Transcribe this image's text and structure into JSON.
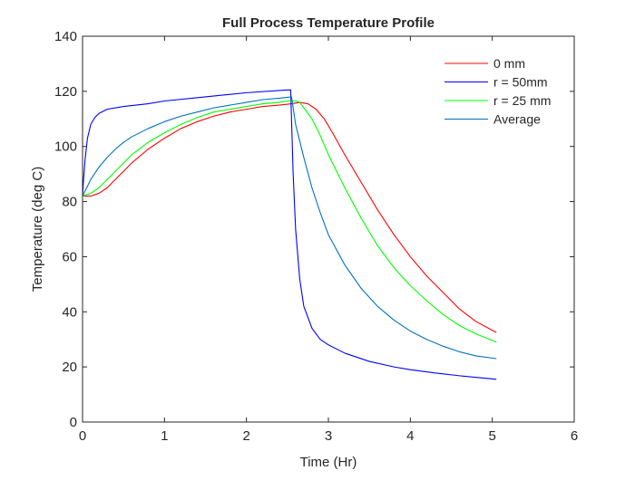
{
  "chart_data": {
    "type": "line",
    "title": "Full Process Temperature Profile",
    "xlabel": "Time (Hr)",
    "ylabel": "Temperature (deg C)",
    "xlim": [
      0,
      6
    ],
    "ylim": [
      0,
      140
    ],
    "xticks": [
      0,
      1,
      2,
      3,
      4,
      5,
      6
    ],
    "yticks": [
      0,
      20,
      40,
      60,
      80,
      100,
      120,
      140
    ],
    "grid": false,
    "legend_position": "top-right",
    "series": [
      {
        "name": "0 mm",
        "color": "#ff0000",
        "x": [
          0,
          0.1,
          0.2,
          0.3,
          0.4,
          0.5,
          0.6,
          0.8,
          1.0,
          1.2,
          1.4,
          1.6,
          1.8,
          2.0,
          2.2,
          2.4,
          2.55,
          2.65,
          2.75,
          2.85,
          2.95,
          3.05,
          3.2,
          3.4,
          3.6,
          3.8,
          4.0,
          4.2,
          4.4,
          4.6,
          4.8,
          5.05
        ],
        "y": [
          82,
          82,
          83,
          85,
          88,
          91,
          94,
          99,
          103,
          106.5,
          109,
          111,
          112.5,
          113.5,
          114.5,
          115,
          115.5,
          116,
          115.5,
          113.5,
          110,
          105,
          97,
          87,
          77,
          68,
          60,
          53,
          47,
          41,
          36.5,
          32.5
        ]
      },
      {
        "name": "r = 50mm",
        "color": "#0000ff",
        "x": [
          0,
          0.01,
          0.03,
          0.06,
          0.1,
          0.15,
          0.2,
          0.3,
          0.5,
          0.8,
          1.0,
          1.5,
          2.0,
          2.5,
          2.54,
          2.55,
          2.57,
          2.6,
          2.65,
          2.7,
          2.8,
          2.9,
          3.0,
          3.2,
          3.5,
          3.8,
          4.0,
          4.3,
          4.6,
          5.05
        ],
        "y": [
          82,
          87,
          95,
          103,
          108,
          110.5,
          112,
          113.5,
          114.5,
          115.5,
          116.5,
          118,
          119.5,
          120.5,
          120.5,
          110,
          90,
          70,
          52,
          42,
          34,
          30,
          28,
          25,
          22,
          20,
          19,
          17.8,
          16.8,
          15.5
        ]
      },
      {
        "name": "r = 25 mm",
        "color": "#00ff00",
        "x": [
          0,
          0.1,
          0.2,
          0.3,
          0.4,
          0.5,
          0.6,
          0.8,
          1.0,
          1.2,
          1.4,
          1.6,
          1.8,
          2.0,
          2.2,
          2.4,
          2.5,
          2.6,
          2.65,
          2.7,
          2.8,
          2.9,
          3.0,
          3.2,
          3.4,
          3.6,
          3.8,
          4.0,
          4.2,
          4.4,
          4.6,
          4.8,
          5.05
        ],
        "y": [
          82,
          83,
          85,
          88,
          91,
          94,
          97,
          101.5,
          105,
          108,
          110.5,
          112.5,
          113.5,
          114.5,
          115.5,
          116,
          116.5,
          116.5,
          116,
          114,
          110,
          104,
          97,
          85,
          74,
          64,
          56,
          49.5,
          44,
          39,
          35,
          32,
          29
        ]
      },
      {
        "name": "Average",
        "color": "#0072bd",
        "x": [
          0,
          0.05,
          0.1,
          0.2,
          0.3,
          0.4,
          0.5,
          0.6,
          0.8,
          1.0,
          1.2,
          1.4,
          1.6,
          1.8,
          2.0,
          2.2,
          2.4,
          2.55,
          2.6,
          2.7,
          2.8,
          2.9,
          3.0,
          3.2,
          3.4,
          3.6,
          3.8,
          4.0,
          4.2,
          4.4,
          4.6,
          4.8,
          5.05
        ],
        "y": [
          82,
          85,
          88,
          92.5,
          96,
          99,
          101.5,
          103.5,
          106.5,
          109,
          111,
          112.5,
          114,
          115,
          116,
          117,
          117.5,
          118,
          108,
          96,
          85,
          76,
          68,
          57,
          48.5,
          42,
          37,
          33,
          30,
          27.5,
          25.5,
          24,
          23
        ]
      }
    ]
  }
}
